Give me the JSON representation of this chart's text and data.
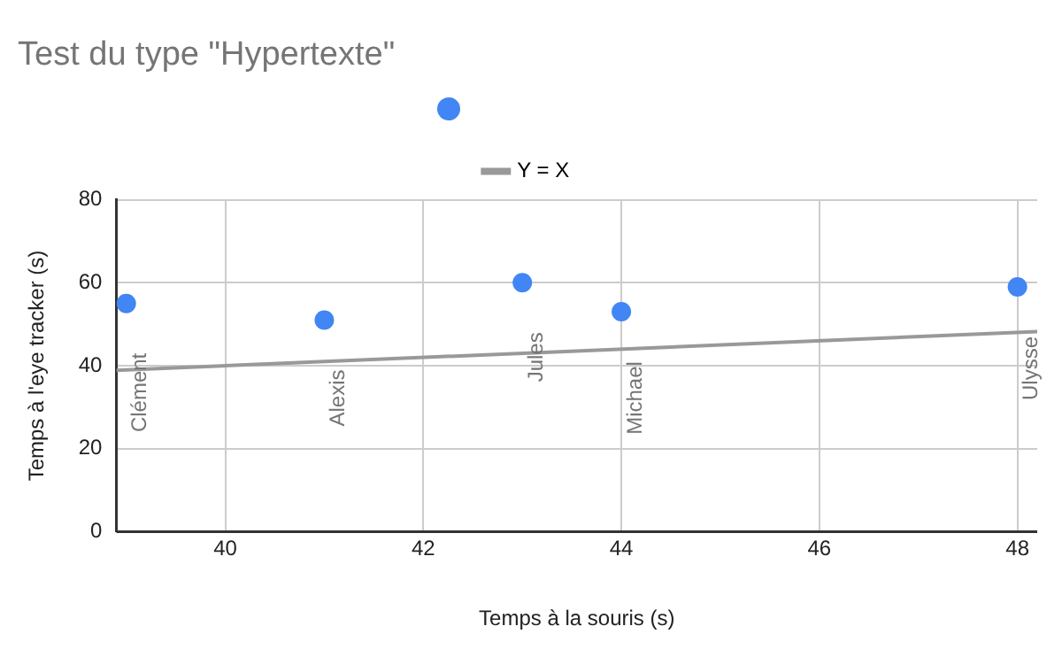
{
  "chart_data": {
    "type": "scatter",
    "title": "Test du type \"Hypertexte\"",
    "xlabel": "Temps à la souris (s)",
    "ylabel": "Temps à l'eye tracker (s)",
    "series": [
      {
        "color": "#4285f4",
        "marker": "circle",
        "x": [
          39,
          41,
          43,
          44,
          48
        ],
        "values": [
          55,
          51,
          60,
          53,
          59
        ]
      },
      {
        "type": "line",
        "name": "Y = X",
        "color": "#999999",
        "marker": "none",
        "x": [
          38.9,
          48.2
        ],
        "values": [
          38.9,
          48.2
        ]
      }
    ],
    "annotations": [
      {
        "text": "Clément",
        "x": 39,
        "y": 55
      },
      {
        "text": "Alexis",
        "x": 41,
        "y": 51
      },
      {
        "text": "Jules",
        "x": 43,
        "y": 60
      },
      {
        "text": "Michael",
        "x": 44,
        "y": 53
      },
      {
        "text": "Ulysse",
        "x": 48,
        "y": 59
      }
    ],
    "xlim": [
      38.9,
      48.2
    ],
    "xticks": [
      40,
      42,
      44,
      46,
      48
    ],
    "ylim": [
      0,
      80
    ],
    "yticks": [
      0,
      20,
      40,
      60,
      80
    ],
    "grid": true,
    "legend": "top"
  }
}
